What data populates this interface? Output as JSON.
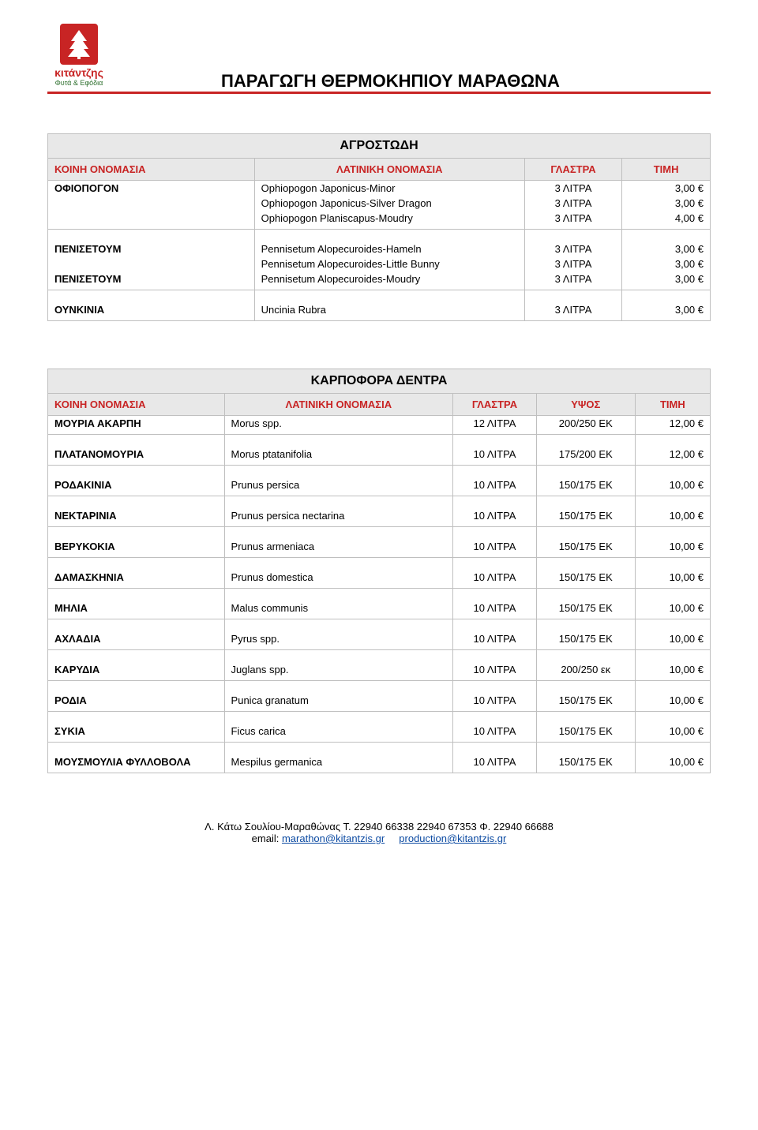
{
  "header": {
    "logo_name": "κιτάντζης",
    "logo_sub": "Φυτά & Εφόδια",
    "doc_title": "ΠΑΡΑΓΩΓΗ ΘΕΡΜΟΚΗΠΙΟΥ ΜΑΡΑΘΩΝΑ",
    "rule_color": "#c82424",
    "logo_bg": "#c82424",
    "logo_leaf": "#2a6d2a"
  },
  "column_labels": {
    "greek": "ΚΟΙΝΗ ΟΝΟΜΑΣΙΑ",
    "latin": "ΛΑΤΙΝΙΚΗ ΟΝΟΜΑΣΙΑ",
    "pot": "ΓΛΑΣΤΡΑ",
    "height": "ΥΨΟΣ",
    "price": "ΤΙΜΗ"
  },
  "tables": {
    "agrostodi": {
      "title": "ΑΓΡΟΣΤΩΔΗ",
      "has_height": false,
      "groups": [
        {
          "rows": [
            {
              "greek": "ΟΦΙΟΠΟΓΟΝ",
              "latin": "Ophiopogon Japonicus-Minor",
              "pot": "3 ΛΙΤΡΑ",
              "price": "3,00 €"
            },
            {
              "greek": "",
              "latin": "Ophiopogon Japonicus-Silver Dragon",
              "pot": "3 ΛΙΤΡΑ",
              "price": "3,00 €"
            },
            {
              "greek": "",
              "latin": "Ophiopogon Planiscapus-Moudry",
              "pot": "3 ΛΙΤΡΑ",
              "price": "4,00 €"
            }
          ]
        },
        {
          "rows": [
            {
              "greek": "ΠΕΝΙΣΕΤΟΥΜ",
              "latin": "Pennisetum Alopecuroides-Hameln",
              "pot": "3 ΛΙΤΡΑ",
              "price": "3,00 €"
            },
            {
              "greek": "",
              "latin": "Pennisetum Alopecuroides-Little Bunny",
              "pot": "3 ΛΙΤΡΑ",
              "price": "3,00 €"
            },
            {
              "greek": "ΠΕΝΙΣΕΤΟΥΜ",
              "latin": "Pennisetum Alopecuroides-Moudry",
              "pot": "3 ΛΙΤΡΑ",
              "price": "3,00 €"
            }
          ]
        },
        {
          "rows": [
            {
              "greek": "ΟΥΝΚΙΝΙΑ",
              "latin": "Uncinia Rubra",
              "pot": "3 ΛΙΤΡΑ",
              "price": "3,00 €"
            }
          ]
        }
      ]
    },
    "karpofora": {
      "title": "ΚΑΡΠΟΦΟΡΑ ΔΕΝΤΡΑ",
      "has_height": true,
      "groups": [
        {
          "rows": [
            {
              "greek": "ΜΟΥΡΙΑ ΑΚΑΡΠΗ",
              "latin": "Morus spp.",
              "pot": "12 ΛΙΤΡΑ",
              "height": "200/250 ΕΚ",
              "price": "12,00 €"
            }
          ]
        },
        {
          "rows": [
            {
              "greek": "ΠΛΑΤΑΝΟΜΟΥΡΙΑ",
              "latin": "Morus ptatanifolia",
              "pot": "10 ΛΙΤΡΑ",
              "height": "175/200 ΕΚ",
              "price": "12,00 €"
            }
          ]
        },
        {
          "rows": [
            {
              "greek": "ΡΟΔΑΚΙΝΙΑ",
              "latin": "Prunus persica",
              "pot": "10 ΛΙΤΡΑ",
              "height": "150/175 ΕΚ",
              "price": "10,00 €"
            }
          ]
        },
        {
          "rows": [
            {
              "greek": "ΝΕΚΤΑΡΙΝΙΑ",
              "latin": "Prunus persica nectarina",
              "pot": "10 ΛΙΤΡΑ",
              "height": "150/175 ΕΚ",
              "price": "10,00 €"
            }
          ]
        },
        {
          "rows": [
            {
              "greek": "ΒΕΡΥΚΟΚΙΑ",
              "latin": "Prunus armeniaca",
              "pot": "10 ΛΙΤΡΑ",
              "height": "150/175 ΕΚ",
              "price": "10,00 €"
            }
          ]
        },
        {
          "rows": [
            {
              "greek": "ΔΑΜΑΣΚΗΝΙΑ",
              "latin": "Prunus domestica",
              "pot": "10 ΛΙΤΡΑ",
              "height": "150/175 ΕΚ",
              "price": "10,00 €"
            }
          ]
        },
        {
          "rows": [
            {
              "greek": "ΜΗΛΙΑ",
              "latin": "Malus communis",
              "pot": "10 ΛΙΤΡΑ",
              "height": "150/175 ΕΚ",
              "price": "10,00 €"
            }
          ]
        },
        {
          "rows": [
            {
              "greek": "ΑΧΛΑΔΙΑ",
              "latin": "Pyrus spp.",
              "pot": "10 ΛΙΤΡΑ",
              "height": "150/175 ΕΚ",
              "price": "10,00 €"
            }
          ]
        },
        {
          "rows": [
            {
              "greek": "ΚΑΡΥΔΙΑ",
              "latin": "Juglans spp.",
              "pot": "10 ΛΙΤΡΑ",
              "height": "200/250 εκ",
              "price": "10,00 €"
            }
          ]
        },
        {
          "rows": [
            {
              "greek": "ΡΟΔΙΑ",
              "latin": "Punica granatum",
              "pot": "10 ΛΙΤΡΑ",
              "height": "150/175 ΕΚ",
              "price": "10,00 €"
            }
          ]
        },
        {
          "rows": [
            {
              "greek": "ΣΥΚΙΑ",
              "latin": "Ficus carica",
              "pot": "10 ΛΙΤΡΑ",
              "height": "150/175 ΕΚ",
              "price": "10,00 €"
            }
          ]
        },
        {
          "rows": [
            {
              "greek": "ΜΟΥΣΜΟΥΛΙΑ ΦΥΛΛΟΒΟΛΑ",
              "latin": "Mespilus germanica",
              "pot": "10 ΛΙΤΡΑ",
              "height": "150/175 ΕΚ",
              "price": "10,00 €"
            }
          ]
        }
      ]
    }
  },
  "footer": {
    "address": "Λ. Κάτω Σουλίου-Μαραθώνας Τ. 22940 66338  22940 67353 Φ. 22940 66688",
    "email_label": "email:",
    "email1": "marathon@kitantzis.gr",
    "email2": "production@kitantzis.gr"
  }
}
